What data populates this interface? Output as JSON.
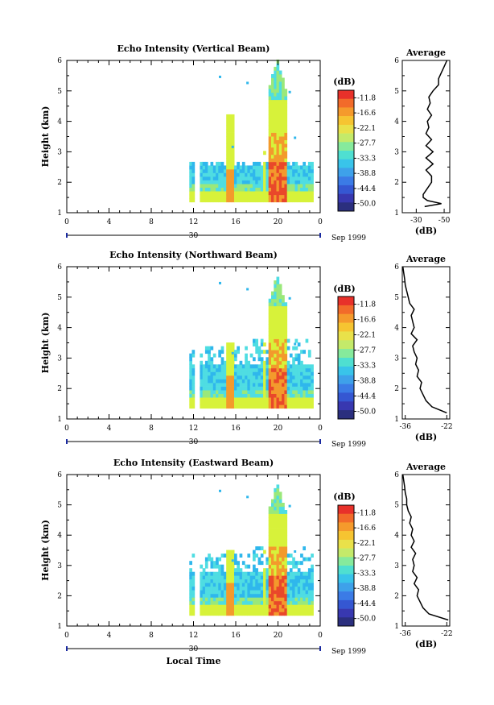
{
  "chart_data": [
    {
      "type": "heatmap",
      "title": "Echo Intensity (Vertical Beam)",
      "ylabel": "Height (km)",
      "x_ticks": [
        "0",
        "4",
        "8",
        "12",
        "16",
        "20",
        "0"
      ],
      "y_ticks": [
        "1",
        "2",
        "3",
        "4",
        "5",
        "6"
      ],
      "date_day": "30",
      "date_label": "Sep 1999",
      "xlim": [
        0,
        24
      ],
      "ylim": [
        1,
        6
      ],
      "colorbar_unit": "(dB)",
      "colorbar_ticks": [
        "-11.8",
        "-16.6",
        "-22.1",
        "-27.7",
        "-33.3",
        "-38.8",
        "-44.4",
        "-50.0"
      ],
      "profile": {
        "title": "Average",
        "xlabel": "(dB)",
        "x_ticks": [
          "-30",
          "-50"
        ],
        "y_ticks": [
          "1",
          "2",
          "3",
          "4",
          "5",
          "6"
        ],
        "xlim": [
          -20,
          -54
        ],
        "heights": [
          1.2,
          1.3,
          1.4,
          1.5,
          1.6,
          1.8,
          2.0,
          2.2,
          2.4,
          2.6,
          2.8,
          3.0,
          3.2,
          3.4,
          3.6,
          3.8,
          4.0,
          4.2,
          4.4,
          4.6,
          4.8,
          5.0,
          5.2,
          5.4,
          5.6,
          5.8,
          6.0
        ],
        "values": [
          -36,
          -48,
          -38,
          -35,
          -35,
          -38,
          -41,
          -41,
          -37,
          -42,
          -37,
          -42,
          -37,
          -41,
          -37,
          -39,
          -38,
          -41,
          -38,
          -40,
          -39,
          -42,
          -46,
          -46,
          -48,
          -50,
          -52
        ]
      }
    },
    {
      "type": "heatmap",
      "title": "Echo Intensity (Northward Beam)",
      "ylabel": "Height (km)",
      "x_ticks": [
        "0",
        "4",
        "8",
        "12",
        "16",
        "20",
        "0"
      ],
      "y_ticks": [
        "1",
        "2",
        "3",
        "4",
        "5",
        "6"
      ],
      "date_day": "30",
      "date_label": "Sep 1999",
      "xlim": [
        0,
        24
      ],
      "ylim": [
        1,
        6
      ],
      "colorbar_unit": "(dB)",
      "colorbar_ticks": [
        "-11.8",
        "-16.6",
        "-22.1",
        "-27.7",
        "-33.3",
        "-38.8",
        "-44.4",
        "-50.0"
      ],
      "profile": {
        "title": "Average",
        "xlabel": "(dB)",
        "x_ticks": [
          "-36",
          "-22"
        ],
        "y_ticks": [
          "1",
          "2",
          "3",
          "4",
          "5",
          "6"
        ],
        "xlim": [
          -37,
          -21
        ],
        "heights": [
          1.2,
          1.4,
          1.6,
          1.8,
          2.0,
          2.2,
          2.4,
          2.6,
          2.8,
          3.0,
          3.2,
          3.4,
          3.6,
          3.8,
          4.0,
          4.2,
          4.4,
          4.6,
          4.8,
          5.0,
          5.2,
          5.4,
          5.6,
          5.8,
          6.0
        ],
        "values": [
          -22,
          -27,
          -29,
          -30,
          -31,
          -30.5,
          -32,
          -31.5,
          -32.5,
          -32,
          -33,
          -33.5,
          -32,
          -34,
          -33,
          -33.5,
          -34,
          -33,
          -34.5,
          -35,
          -35.5,
          -36,
          -36.2,
          -36.5,
          -36.8
        ]
      }
    },
    {
      "type": "heatmap",
      "title": "Echo Intensity (Eastward Beam)",
      "ylabel": "Height (km)",
      "xlabel": "Local Time",
      "x_ticks": [
        "0",
        "4",
        "8",
        "12",
        "16",
        "20",
        "0"
      ],
      "y_ticks": [
        "1",
        "2",
        "3",
        "4",
        "5",
        "6"
      ],
      "date_day": "30",
      "date_label": "Sep 1999",
      "xlim": [
        0,
        24
      ],
      "ylim": [
        1,
        6
      ],
      "colorbar_unit": "(dB)",
      "colorbar_ticks": [
        "-11.8",
        "-16.6",
        "-22.1",
        "-27.7",
        "-33.3",
        "-38.8",
        "-44.4",
        "-50.0"
      ],
      "profile": {
        "title": "Average",
        "xlabel": "(dB)",
        "x_ticks": [
          "-36",
          "-22"
        ],
        "y_ticks": [
          "1",
          "2",
          "3",
          "4",
          "5",
          "6"
        ],
        "xlim": [
          -37,
          -21
        ],
        "heights": [
          1.2,
          1.4,
          1.6,
          1.8,
          2.0,
          2.2,
          2.4,
          2.6,
          2.8,
          3.0,
          3.2,
          3.4,
          3.6,
          3.8,
          4.0,
          4.2,
          4.4,
          4.6,
          4.8,
          5.0,
          5.2,
          5.4,
          5.6,
          5.8,
          6.0
        ],
        "values": [
          -21.5,
          -28,
          -30,
          -31,
          -32,
          -31.5,
          -33,
          -32,
          -33.5,
          -33,
          -33.5,
          -32.5,
          -34,
          -33,
          -34,
          -33.5,
          -34.5,
          -34,
          -35,
          -35.5,
          -35.5,
          -36,
          -36.2,
          -36.5,
          -36.8
        ]
      }
    }
  ],
  "colorbar_colors": [
    "#e8312a",
    "#f26b2a",
    "#f59a2c",
    "#f6c431",
    "#e9e14a",
    "#c4ea6a",
    "#86ea9c",
    "#4fdfd1",
    "#39c4ea",
    "#3ea1ea",
    "#3b7be6",
    "#3557d2",
    "#3838b0",
    "#2b2f7e"
  ],
  "cell_colors": {
    "top": "#d7f23a",
    "upper": "#9ae87a",
    "mid": "#4fdde2",
    "low": "#2fb7ec",
    "core": "#f39a2c",
    "hot": "#e9482a"
  }
}
